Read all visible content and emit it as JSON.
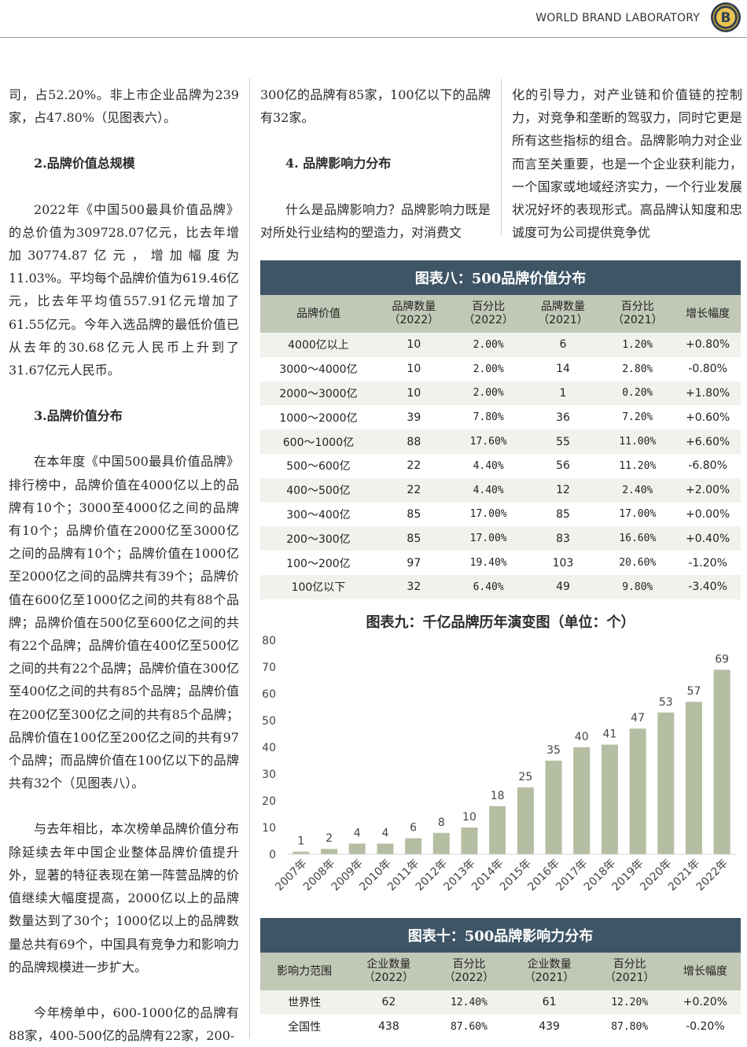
{
  "header": {
    "brand": "WORLD BRAND LABORATORY",
    "logo_letter": "B"
  },
  "col1": {
    "p1": "司，占52.20%。非上市企业品牌为239家，占47.80%（见图表六）。",
    "h2": "2.品牌价值总规模",
    "p2": "2022年《中国500最具价值品牌》的总价值为309728.07亿元，比去年增加30774.87亿元，增加幅度为11.03%。平均每个品牌价值为619.46亿元，比去年平均值557.91亿元增加了61.55亿元。今年入选品牌的最低价值已从去年的30.68亿元人民币上升到了31.67亿元人民币。",
    "h3": "3.品牌价值分布",
    "p3": "在本年度《中国500最具价值品牌》排行榜中，品牌价值在4000亿以上的品牌有10个；3000至4000亿之间的品牌有10个；品牌价值在2000亿至3000亿之间的品牌有10个；品牌价值在1000亿至2000亿之间的品牌共有39个；品牌价值在600亿至1000亿之间的共有88个品牌；品牌价值在500亿至600亿之间的共有22个品牌；品牌价值在400亿至500亿之间的共有22个品牌；品牌价值在300亿至400亿之间的共有85个品牌；品牌价值在200亿至300亿之间的共有85个品牌；品牌价值在100亿至200亿之间的共有97个品牌；而品牌价值在100亿以下的品牌共有32个（见图表八）。",
    "p4": "与去年相比，本次榜单品牌价值分布除延续去年中国企业整体品牌价值提升外，显著的特征表现在第一阵营品牌的价值继续大幅度提高，2000亿以上的品牌数量达到了30个；1000亿以上的品牌数量总共有69个，中国具有竞争力和影响力的品牌规模进一步扩大。",
    "p5": "今年榜单中，600-1000亿的品牌有88家，400-500亿的品牌有22家，200-"
  },
  "col2": {
    "p1": "300亿的品牌有85家，100亿以下的品牌有32家。",
    "h4": "4. 品牌影响力分布",
    "p2": "什么是品牌影响力？品牌影响力既是对所处行业结构的塑造力，对消费文"
  },
  "col3": {
    "p1": "化的引导力，对产业链和价值链的控制力，对竞争和垄断的驾驭力，同时它更是所有这些指标的组合。品牌影响力对企业而言至关重要，也是一个企业获利能力，一个国家或地域经济实力，一个行业发展状况好坏的表现形式。高品牌认知度和忠诚度可为公司提供竞争优"
  },
  "table8": {
    "title": "图表八：500品牌价值分布",
    "headers": [
      [
        "品牌价值",
        ""
      ],
      [
        "品牌数量",
        "（2022）"
      ],
      [
        "百分比",
        "（2022）"
      ],
      [
        "品牌数量",
        "（2021）"
      ],
      [
        "百分比",
        "（2021）"
      ],
      [
        "增长幅度",
        ""
      ]
    ],
    "rows": [
      [
        "4000亿以上",
        "10",
        "2.00%",
        "6",
        "1.20%",
        "+0.80%"
      ],
      [
        "3000～4000亿",
        "10",
        "2.00%",
        "14",
        "2.80%",
        "-0.80%"
      ],
      [
        "2000～3000亿",
        "10",
        "2.00%",
        "1",
        "0.20%",
        "+1.80%"
      ],
      [
        "1000～2000亿",
        "39",
        "7.80%",
        "36",
        "7.20%",
        "+0.60%"
      ],
      [
        "600～1000亿",
        "88",
        "17.60%",
        "55",
        "11.00%",
        "+6.60%"
      ],
      [
        "500～600亿",
        "22",
        "4.40%",
        "56",
        "11.20%",
        "-6.80%"
      ],
      [
        "400～500亿",
        "22",
        "4.40%",
        "12",
        "2.40%",
        "+2.00%"
      ],
      [
        "300～400亿",
        "85",
        "17.00%",
        "85",
        "17.00%",
        "+0.00%"
      ],
      [
        "200～300亿",
        "85",
        "17.00%",
        "83",
        "16.60%",
        "+0.40%"
      ],
      [
        "100～200亿",
        "97",
        "19.40%",
        "103",
        "20.60%",
        "-1.20%"
      ],
      [
        "100亿以下",
        "32",
        "6.40%",
        "49",
        "9.80%",
        "-3.40%"
      ]
    ]
  },
  "chart_data": {
    "type": "bar",
    "title": "图表九：千亿品牌历年演变图（单位：个）",
    "categories": [
      "2007年",
      "2008年",
      "2009年",
      "2010年",
      "2011年",
      "2012年",
      "2013年",
      "2014年",
      "2015年",
      "2016年",
      "2017年",
      "2018年",
      "2019年",
      "2020年",
      "2021年",
      "2022年"
    ],
    "values": [
      1,
      2,
      4,
      4,
      6,
      8,
      10,
      18,
      25,
      35,
      40,
      41,
      47,
      53,
      57,
      69
    ],
    "yticks": [
      0,
      10,
      20,
      30,
      40,
      50,
      60,
      70,
      80
    ],
    "ylim": [
      0,
      80
    ],
    "bar_color": "#b5bea2",
    "grid": false
  },
  "table10": {
    "title": "图表十：500品牌影响力分布",
    "headers": [
      [
        "影响力范围",
        ""
      ],
      [
        "企业数量",
        "（2022）"
      ],
      [
        "百分比",
        "（2022）"
      ],
      [
        "企业数量",
        "（2021）"
      ],
      [
        "百分比",
        "（2021）"
      ],
      [
        "增长幅度",
        ""
      ]
    ],
    "rows": [
      [
        "世界性",
        "62",
        "12.40%",
        "61",
        "12.20%",
        "+0.20%"
      ],
      [
        "全国性",
        "438",
        "87.60%",
        "439",
        "87.80%",
        "-0.20%"
      ]
    ]
  }
}
